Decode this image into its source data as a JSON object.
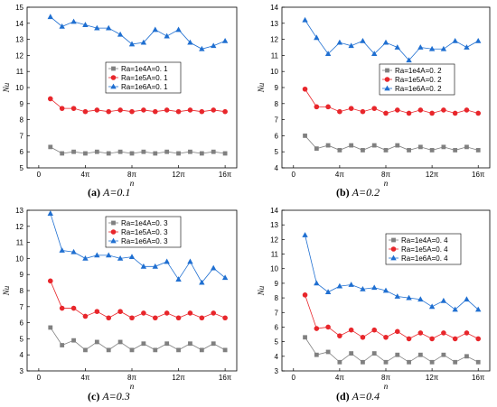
{
  "figure": {
    "captions": [
      {
        "letter": "(a)",
        "text": "A=0.1"
      },
      {
        "letter": "(b)",
        "text": "A=0.2"
      },
      {
        "letter": "(c)",
        "text": "A=0.3"
      },
      {
        "letter": "(d)",
        "text": "A=0.4"
      }
    ]
  },
  "chart_data": [
    {
      "type": "line",
      "title": "",
      "xlabel": "n",
      "ylabel": "Nu",
      "xlim": [
        -1,
        17
      ],
      "ylim": [
        5,
        15
      ],
      "xticks": [
        0,
        4,
        8,
        12,
        16
      ],
      "xtick_labels": [
        "0",
        "4π",
        "8π",
        "12π",
        "16π"
      ],
      "yticks": [
        5,
        6,
        7,
        8,
        9,
        10,
        11,
        12,
        13,
        14,
        15
      ],
      "legend_position": "right",
      "x": [
        1,
        2,
        3,
        4,
        5,
        6,
        7,
        8,
        9,
        10,
        11,
        12,
        13,
        14,
        15,
        16
      ],
      "series": [
        {
          "name": "Ra=1e4A=0. 1",
          "color": "#808080",
          "marker": "square",
          "values": [
            6.3,
            5.9,
            6.0,
            5.9,
            6.0,
            5.9,
            6.0,
            5.9,
            6.0,
            5.9,
            6.0,
            5.9,
            6.0,
            5.9,
            6.0,
            5.9
          ]
        },
        {
          "name": "Ra=1e5A=0. 1",
          "color": "#e8262b",
          "marker": "circle",
          "values": [
            9.3,
            8.7,
            8.7,
            8.5,
            8.6,
            8.5,
            8.6,
            8.5,
            8.6,
            8.5,
            8.6,
            8.5,
            8.6,
            8.5,
            8.6,
            8.5
          ]
        },
        {
          "name": "Ra=1e6A=0. 1",
          "color": "#1f6fd1",
          "marker": "triangle",
          "values": [
            14.4,
            13.8,
            14.1,
            13.9,
            13.7,
            13.7,
            13.3,
            12.7,
            12.8,
            13.6,
            13.2,
            13.6,
            12.8,
            12.4,
            12.6,
            12.9
          ]
        }
      ]
    },
    {
      "type": "line",
      "title": "",
      "xlabel": "n",
      "ylabel": "Nu",
      "xlim": [
        -1,
        17
      ],
      "ylim": [
        4,
        14
      ],
      "xticks": [
        0,
        4,
        8,
        12,
        16
      ],
      "xtick_labels": [
        "0",
        "4π",
        "8π",
        "12π",
        "16π"
      ],
      "yticks": [
        4,
        5,
        6,
        7,
        8,
        9,
        10,
        11,
        12,
        13,
        14
      ],
      "legend_position": "right",
      "x": [
        1,
        2,
        3,
        4,
        5,
        6,
        7,
        8,
        9,
        10,
        11,
        12,
        13,
        14,
        15,
        16
      ],
      "series": [
        {
          "name": "Ra=1e4A=0. 2",
          "color": "#808080",
          "marker": "square",
          "values": [
            6.0,
            5.2,
            5.4,
            5.1,
            5.4,
            5.1,
            5.4,
            5.1,
            5.4,
            5.1,
            5.3,
            5.1,
            5.3,
            5.1,
            5.3,
            5.1
          ]
        },
        {
          "name": "Ra=1e5A=0. 2",
          "color": "#e8262b",
          "marker": "circle",
          "values": [
            8.9,
            7.8,
            7.8,
            7.5,
            7.7,
            7.5,
            7.7,
            7.4,
            7.6,
            7.4,
            7.6,
            7.4,
            7.6,
            7.4,
            7.6,
            7.4
          ]
        },
        {
          "name": "Ra=1e6A=0. 2",
          "color": "#1f6fd1",
          "marker": "triangle",
          "values": [
            13.2,
            12.1,
            11.1,
            11.8,
            11.6,
            11.9,
            11.1,
            11.8,
            11.5,
            10.7,
            11.5,
            11.4,
            11.4,
            11.9,
            11.5,
            11.9
          ]
        }
      ]
    },
    {
      "type": "line",
      "title": "",
      "xlabel": "n",
      "ylabel": "Nu",
      "xlim": [
        -1,
        17
      ],
      "ylim": [
        3,
        13
      ],
      "xticks": [
        0,
        4,
        8,
        12,
        16
      ],
      "xtick_labels": [
        "0",
        "4π",
        "8π",
        "12π",
        "16π"
      ],
      "yticks": [
        3,
        4,
        5,
        6,
        7,
        8,
        9,
        10,
        11,
        12,
        13
      ],
      "legend_position": "top-right",
      "x": [
        1,
        2,
        3,
        4,
        5,
        6,
        7,
        8,
        9,
        10,
        11,
        12,
        13,
        14,
        15,
        16
      ],
      "series": [
        {
          "name": "Ra=1e4A=0. 3",
          "color": "#808080",
          "marker": "square",
          "values": [
            5.7,
            4.6,
            4.9,
            4.3,
            4.8,
            4.3,
            4.8,
            4.3,
            4.7,
            4.3,
            4.7,
            4.3,
            4.7,
            4.3,
            4.7,
            4.3
          ]
        },
        {
          "name": "Ra=1e5A=0. 3",
          "color": "#e8262b",
          "marker": "circle",
          "values": [
            8.6,
            6.9,
            6.9,
            6.4,
            6.7,
            6.3,
            6.7,
            6.3,
            6.6,
            6.3,
            6.6,
            6.3,
            6.6,
            6.3,
            6.6,
            6.3
          ]
        },
        {
          "name": "Ra=1e6A=0. 3",
          "color": "#1f6fd1",
          "marker": "triangle",
          "values": [
            12.8,
            10.5,
            10.4,
            10.0,
            10.2,
            10.2,
            10.0,
            10.1,
            9.5,
            9.5,
            9.8,
            8.7,
            9.8,
            8.5,
            9.4,
            8.8
          ]
        }
      ]
    },
    {
      "type": "line",
      "title": "",
      "xlabel": "n",
      "ylabel": "Nu",
      "xlim": [
        -1,
        17
      ],
      "ylim": [
        3,
        14
      ],
      "xticks": [
        0,
        4,
        8,
        12,
        16
      ],
      "xtick_labels": [
        "0",
        "4π",
        "8π",
        "12π",
        "16π"
      ],
      "yticks": [
        3,
        4,
        5,
        6,
        7,
        8,
        9,
        10,
        11,
        12,
        13,
        14
      ],
      "legend_position": "top-right",
      "x": [
        1,
        2,
        3,
        4,
        5,
        6,
        7,
        8,
        9,
        10,
        11,
        12,
        13,
        14,
        15,
        16
      ],
      "series": [
        {
          "name": "Ra=1e4A=0. 4",
          "color": "#808080",
          "marker": "square",
          "values": [
            5.3,
            4.1,
            4.3,
            3.6,
            4.2,
            3.6,
            4.2,
            3.6,
            4.1,
            3.6,
            4.1,
            3.6,
            4.1,
            3.6,
            4.0,
            3.6
          ]
        },
        {
          "name": "Ra=1e5A=0. 4",
          "color": "#e8262b",
          "marker": "circle",
          "values": [
            8.2,
            5.9,
            6.0,
            5.4,
            5.8,
            5.3,
            5.8,
            5.3,
            5.7,
            5.2,
            5.6,
            5.2,
            5.6,
            5.2,
            5.6,
            5.2
          ]
        },
        {
          "name": "Ra=1e6A=0. 4",
          "color": "#1f6fd1",
          "marker": "triangle",
          "values": [
            12.3,
            9.0,
            8.4,
            8.8,
            8.9,
            8.6,
            8.7,
            8.5,
            8.1,
            8.0,
            7.9,
            7.4,
            7.8,
            7.2,
            7.9,
            7.2
          ]
        }
      ]
    }
  ]
}
